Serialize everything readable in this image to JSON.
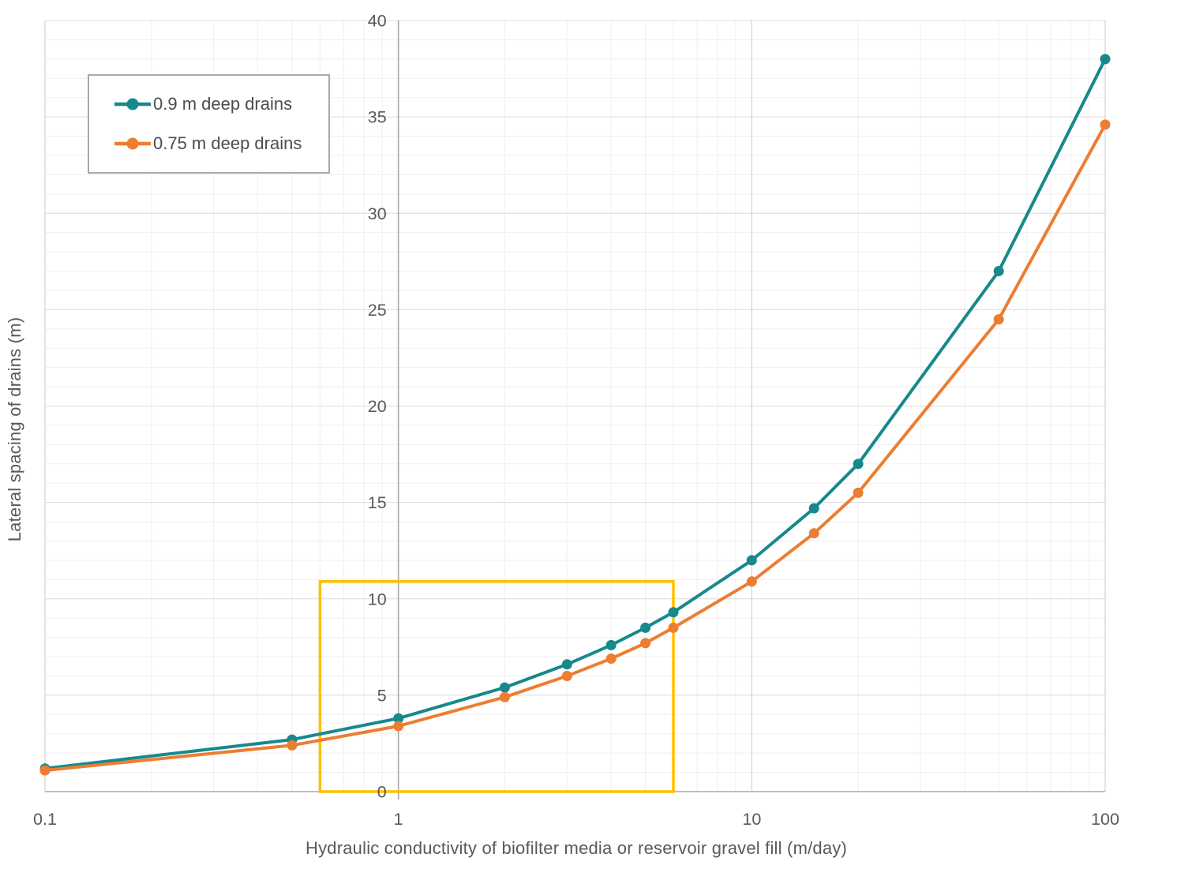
{
  "chart_data": {
    "type": "line",
    "x_scale": "log",
    "x": [
      0.1,
      0.5,
      1,
      2,
      3,
      4,
      5,
      6,
      10,
      15,
      20,
      50,
      100
    ],
    "series": [
      {
        "name": "0.9 m deep drains",
        "color": "#17898c",
        "values": [
          1.2,
          2.7,
          3.8,
          5.4,
          6.6,
          7.6,
          8.5,
          9.3,
          12.0,
          14.7,
          17.0,
          27.0,
          38.0
        ]
      },
      {
        "name": "0.75 m deep drains",
        "color": "#ed7d31",
        "values": [
          1.1,
          2.4,
          3.4,
          4.9,
          6.0,
          6.9,
          7.7,
          8.5,
          10.9,
          13.4,
          15.5,
          24.5,
          34.6
        ]
      }
    ],
    "xlabel": "Hydraulic conductivity of biofilter media or reservoir gravel fill  (m/day)",
    "ylabel": "Lateral spacing of drains (m)",
    "xlim": [
      0.1,
      100
    ],
    "ylim": [
      0,
      40
    ],
    "x_ticks": [
      {
        "value": 0.1,
        "label": "0.1"
      },
      {
        "value": 1,
        "label": "1"
      },
      {
        "value": 10,
        "label": "10"
      },
      {
        "value": 100,
        "label": "100"
      }
    ],
    "y_tick_major_step": 5,
    "y_grid_minor_step": 1,
    "grid": true,
    "legend_position": "top-left",
    "annotation_box": {
      "x0": 0.6,
      "x1": 6,
      "y0": 0,
      "y1": 10.9,
      "color": "#ffc000"
    }
  },
  "colors": {
    "grid_minor": "#efefef",
    "grid_major": "#dcdcdc",
    "grid_decade": "#d2d2d2",
    "axis_line": "#bfbfbf",
    "crossing_axis": "#a6a6a6",
    "tick_text": "#595959",
    "legend_text": "#4b4b52",
    "legend_border": "#a9a9a9",
    "highlight": "#ffc000"
  }
}
